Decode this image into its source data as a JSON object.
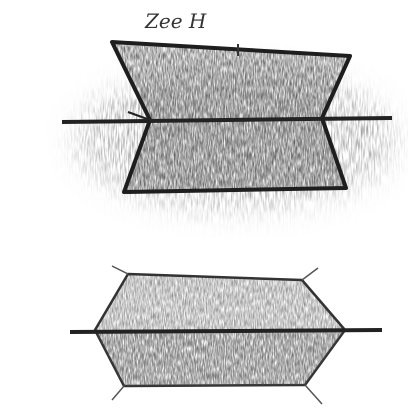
{
  "caption": "Zee H"
}
